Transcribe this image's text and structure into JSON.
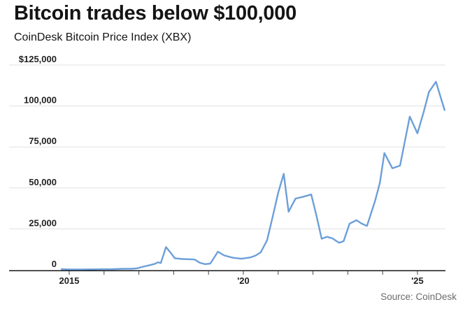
{
  "header": {
    "title": "Bitcoin trades below $100,000",
    "subtitle": "CoinDesk Bitcoin Price Index (XBX)"
  },
  "footer": {
    "source": "Source: CoinDesk"
  },
  "colors": {
    "line": "#6c9fd8",
    "grid": "#e1e1e1",
    "axis": "#000000",
    "tick_label": "#222222",
    "title_text": "#141414",
    "source_text": "#6b6b6b",
    "background": "#ffffff"
  },
  "chart_data": {
    "type": "line",
    "title": "Bitcoin trades below $100,000",
    "subtitle": "CoinDesk Bitcoin Price Index (XBX)",
    "source": "Source: CoinDesk",
    "grid": true,
    "legend": "none",
    "x_axis": {
      "unit": "year",
      "range": [
        2013.3,
        2025.8
      ],
      "tick_years": [
        2015,
        2016,
        2017,
        2018,
        2019,
        2020,
        2021,
        2022,
        2023,
        2024,
        2025
      ],
      "labeled_ticks": {
        "2015": "2015",
        "2020": "'20",
        "2025": "'25"
      }
    },
    "y_axis": {
      "unit": "USD",
      "range": [
        0,
        125000
      ],
      "ticks": [
        {
          "value": 0,
          "label": "0"
        },
        {
          "value": 25000,
          "label": "25,000"
        },
        {
          "value": 50000,
          "label": "50,000"
        },
        {
          "value": 75000,
          "label": "75,000"
        },
        {
          "value": 100000,
          "label": "100,000"
        },
        {
          "value": 125000,
          "label": "$125,000"
        }
      ]
    },
    "series": [
      {
        "name": "CoinDesk Bitcoin Price Index (XBX)",
        "color": "#6c9fd8",
        "points": [
          [
            2014.78,
            380
          ],
          [
            2015.05,
            260
          ],
          [
            2015.35,
            250
          ],
          [
            2015.65,
            290
          ],
          [
            2015.95,
            380
          ],
          [
            2016.25,
            430
          ],
          [
            2016.55,
            620
          ],
          [
            2016.78,
            660
          ],
          [
            2016.95,
            950
          ],
          [
            2017.12,
            1900
          ],
          [
            2017.3,
            2800
          ],
          [
            2017.45,
            3600
          ],
          [
            2017.55,
            4600
          ],
          [
            2017.63,
            4200
          ],
          [
            2017.78,
            13900
          ],
          [
            2017.93,
            10000
          ],
          [
            2018.03,
            7100
          ],
          [
            2018.25,
            6600
          ],
          [
            2018.45,
            6500
          ],
          [
            2018.6,
            6300
          ],
          [
            2018.75,
            4300
          ],
          [
            2018.9,
            3500
          ],
          [
            2019.05,
            3800
          ],
          [
            2019.27,
            11100
          ],
          [
            2019.45,
            8800
          ],
          [
            2019.7,
            7400
          ],
          [
            2019.95,
            6800
          ],
          [
            2020.2,
            7600
          ],
          [
            2020.35,
            8700
          ],
          [
            2020.5,
            10700
          ],
          [
            2020.68,
            18000
          ],
          [
            2020.85,
            33000
          ],
          [
            2021.0,
            47000
          ],
          [
            2021.16,
            58600
          ],
          [
            2021.3,
            35500
          ],
          [
            2021.5,
            43500
          ],
          [
            2021.7,
            44500
          ],
          [
            2021.95,
            46000
          ],
          [
            2022.1,
            33000
          ],
          [
            2022.25,
            19000
          ],
          [
            2022.4,
            20200
          ],
          [
            2022.55,
            19300
          ],
          [
            2022.75,
            16500
          ],
          [
            2022.88,
            17500
          ],
          [
            2023.05,
            28200
          ],
          [
            2023.25,
            30300
          ],
          [
            2023.4,
            28200
          ],
          [
            2023.55,
            26800
          ],
          [
            2023.78,
            41800
          ],
          [
            2023.92,
            53000
          ],
          [
            2024.05,
            71300
          ],
          [
            2024.28,
            62000
          ],
          [
            2024.5,
            63600
          ],
          [
            2024.78,
            93500
          ],
          [
            2025.0,
            83300
          ],
          [
            2025.18,
            96500
          ],
          [
            2025.33,
            108500
          ],
          [
            2025.53,
            114800
          ],
          [
            2025.78,
            97500
          ]
        ]
      }
    ]
  }
}
